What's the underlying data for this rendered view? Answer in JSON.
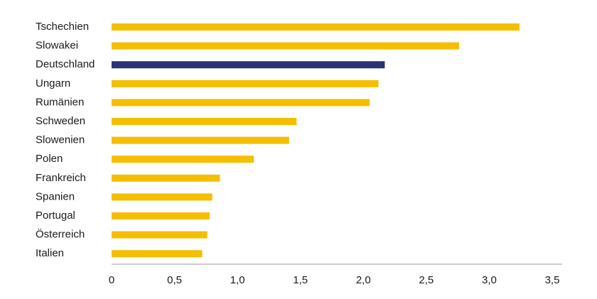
{
  "chart_data": {
    "type": "bar",
    "orientation": "horizontal",
    "categories": [
      "Tschechien",
      "Slowakei",
      "Deutschland",
      "Ungarn",
      "Rumänien",
      "Schweden",
      "Slowenien",
      "Polen",
      "Frankreich",
      "Spanien",
      "Portugal",
      "Österreich",
      "Italien"
    ],
    "values": [
      3.24,
      2.76,
      2.17,
      2.12,
      2.05,
      1.47,
      1.41,
      1.13,
      0.86,
      0.8,
      0.78,
      0.76,
      0.72
    ],
    "highlight_category": "Deutschland",
    "xlim": [
      0,
      3.5
    ],
    "x_ticks": [
      "0",
      "0,5",
      "1,0",
      "1,5",
      "2,0",
      "2,5",
      "3,0",
      "3,5"
    ],
    "x_tick_values": [
      0,
      0.5,
      1.0,
      1.5,
      2.0,
      2.5,
      3.0,
      3.5
    ],
    "grid": false,
    "colors": {
      "bar": "#F5BE00",
      "highlight": "#2B3275",
      "axis": "#9a9a9a",
      "text": "#1a1a1a"
    }
  }
}
